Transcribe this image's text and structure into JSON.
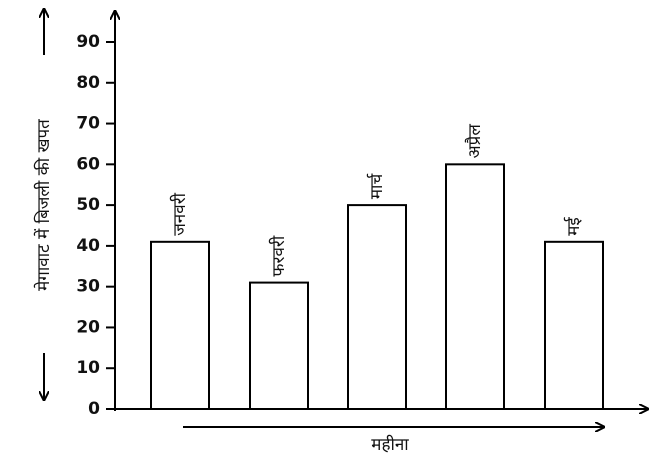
{
  "chart_data": {
    "type": "bar",
    "categories": [
      "जनवरी",
      "फरवरी",
      "मार्च",
      "अप्रैल",
      "मई"
    ],
    "values": [
      41,
      31,
      50,
      60,
      41
    ],
    "xlabel": "महीना",
    "ylabel": "मेगावाट में बिजली की खपत",
    "ylim": [
      0,
      90
    ],
    "yticks": [
      0,
      10,
      20,
      30,
      40,
      50,
      60,
      70,
      80,
      90
    ],
    "grid": false,
    "bar_fill": "#ffffff",
    "bar_stroke": "#000000"
  }
}
